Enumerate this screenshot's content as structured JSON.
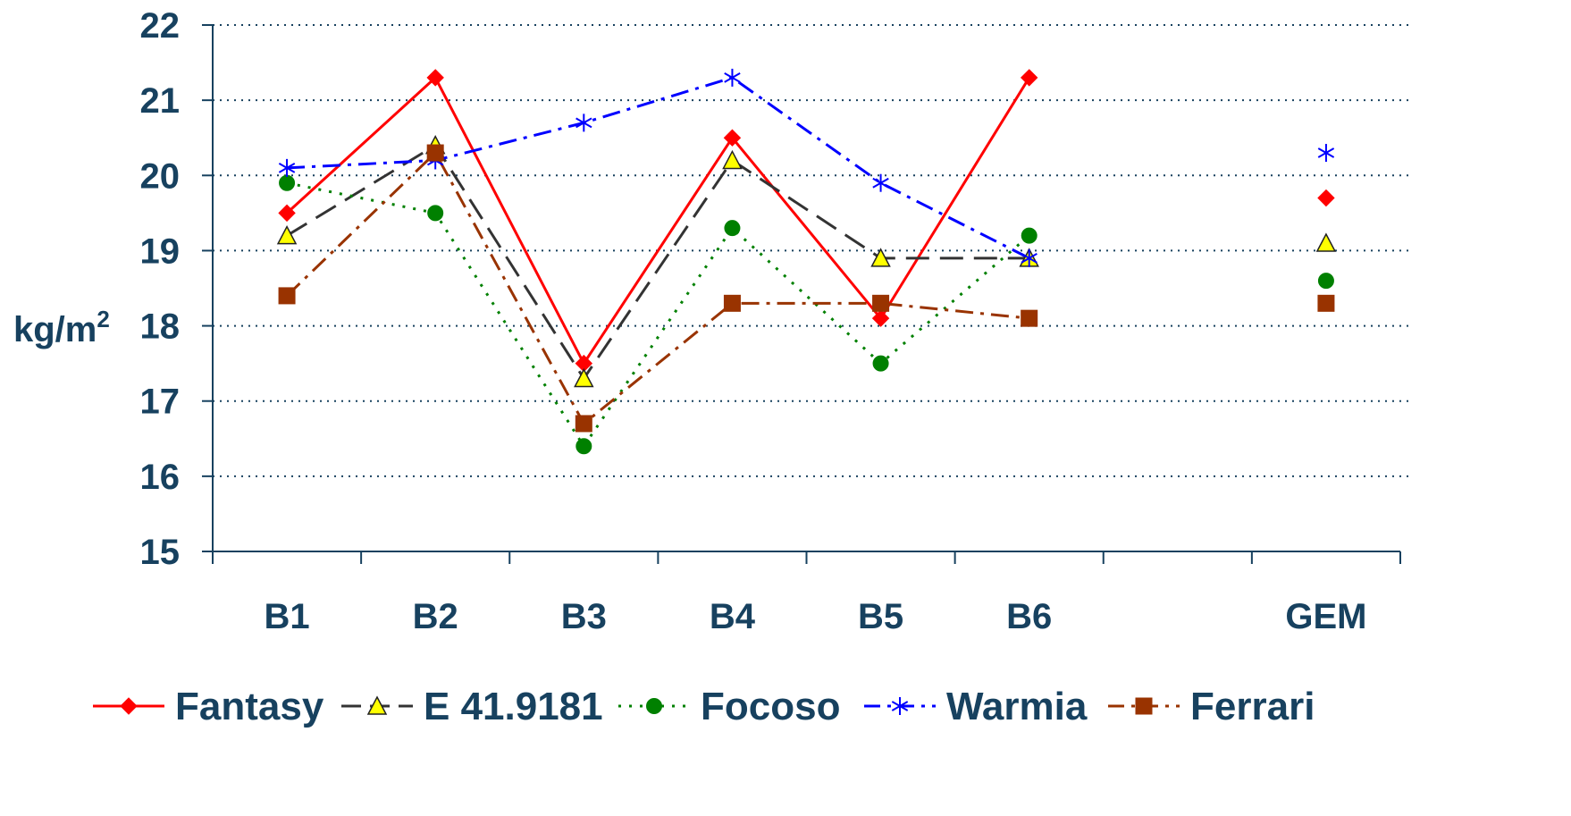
{
  "chart_data": {
    "type": "line",
    "ylabel": "kg/m",
    "ylabel_sup": "2",
    "categories": [
      "B1",
      "B2",
      "B3",
      "B4",
      "B5",
      "B6",
      "",
      "GEM"
    ],
    "ylim": [
      15,
      22
    ],
    "yticks": [
      "15",
      "16",
      "17",
      "18",
      "19",
      "20",
      "21",
      "22"
    ],
    "grid": "horizontal dotted",
    "legend_position": "bottom",
    "series": [
      {
        "name": "Fantasy",
        "color": "#ff0000",
        "marker": "diamond",
        "dash": "solid",
        "values": [
          19.5,
          21.3,
          17.5,
          20.5,
          18.1,
          21.3,
          null,
          19.7
        ]
      },
      {
        "name": "E 41.9181",
        "color": "#333333",
        "marker": "triangle",
        "dash": "long-dash",
        "values": [
          19.2,
          20.4,
          17.3,
          20.2,
          18.9,
          18.9,
          null,
          19.1
        ]
      },
      {
        "name": "Focoso",
        "color": "#008000",
        "marker": "circle",
        "dash": "dotted",
        "values": [
          19.9,
          19.5,
          16.4,
          19.3,
          17.5,
          19.2,
          null,
          18.6
        ]
      },
      {
        "name": "Warmia",
        "color": "#0000ff",
        "marker": "asterisk",
        "dash": "dash-dot",
        "values": [
          20.1,
          20.2,
          20.7,
          21.3,
          19.9,
          18.9,
          null,
          20.3
        ]
      },
      {
        "name": "Ferrari",
        "color": "#993300",
        "marker": "square",
        "dash": "dash-dot",
        "values": [
          18.4,
          20.3,
          16.7,
          18.3,
          18.3,
          18.1,
          null,
          18.3
        ]
      }
    ]
  }
}
